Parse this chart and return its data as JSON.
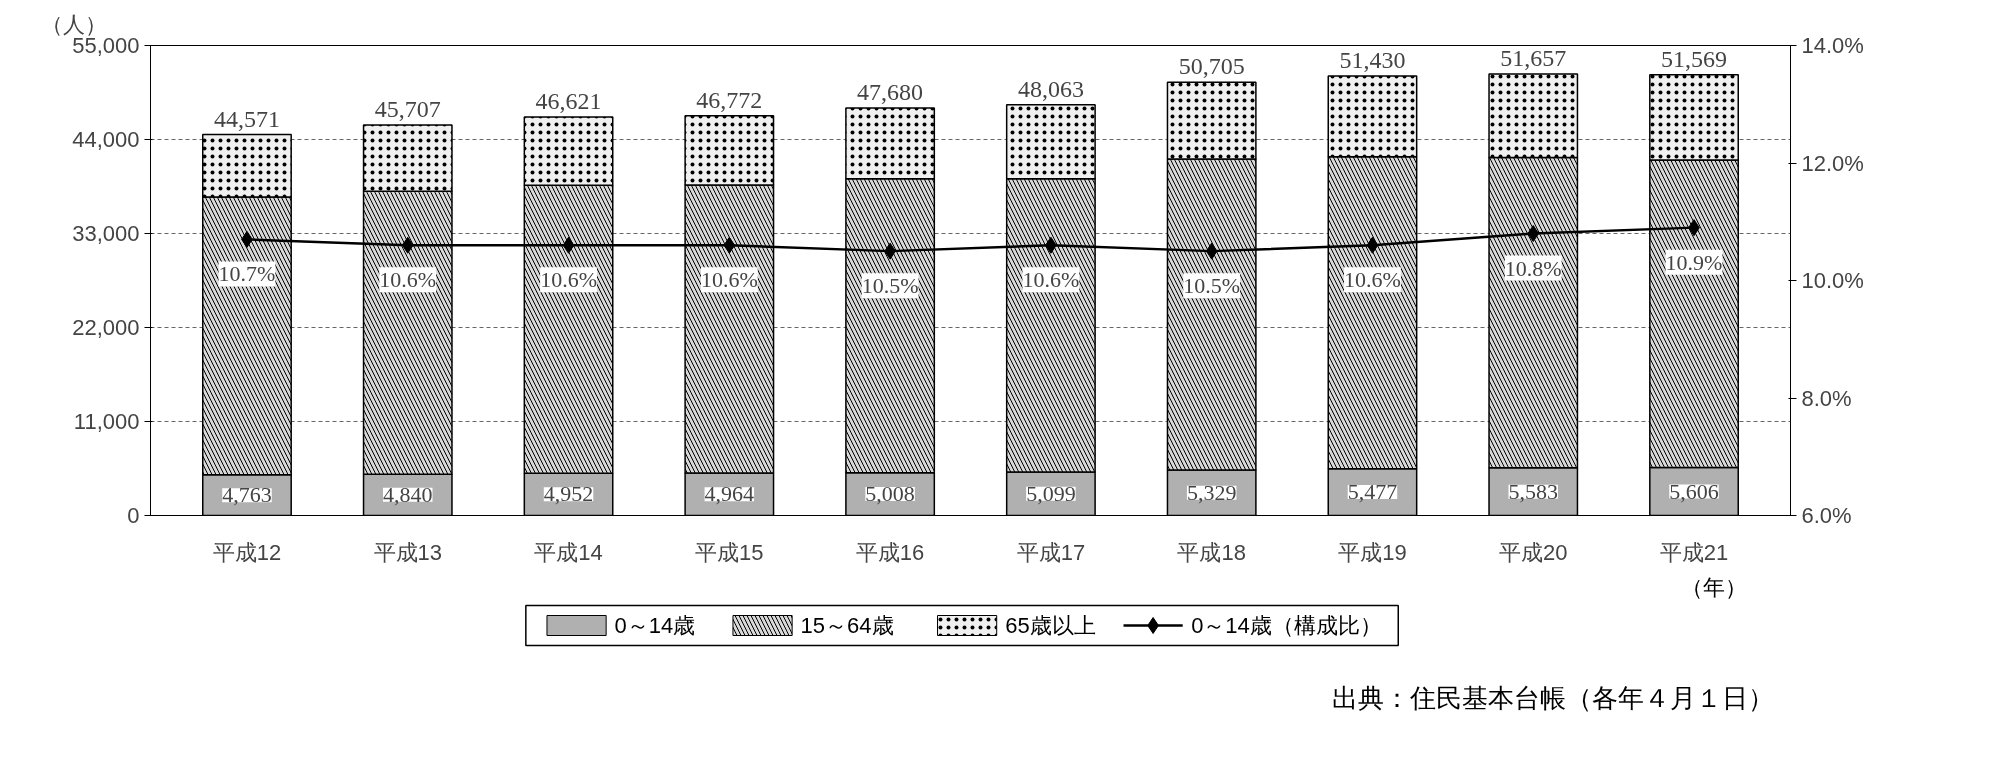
{
  "chart_data": {
    "type": "bar",
    "stacked": true,
    "categories": [
      "平成12",
      "平成13",
      "平成14",
      "平成15",
      "平成16",
      "平成17",
      "平成18",
      "平成19",
      "平成20",
      "平成21"
    ],
    "series": [
      {
        "name": "0～14歳",
        "color": "#b0b0b0",
        "values": [
          4763,
          4840,
          4952,
          4964,
          5008,
          5099,
          5329,
          5477,
          5583,
          5606
        ],
        "value_labels": [
          "4,763",
          "4,840",
          "4,952",
          "4,964",
          "5,008",
          "5,099",
          "5,329",
          "5,477",
          "5,583",
          "5,606"
        ]
      },
      {
        "name": "15～64歳",
        "color": "#d8d8d8",
        "values": [
          32500,
          33100,
          33700,
          33700,
          34400,
          34300,
          36400,
          36500,
          36300,
          36000
        ]
      },
      {
        "name": "65歳以上",
        "color": "#f0f0f0",
        "values": [
          7308,
          7767,
          7969,
          8108,
          8272,
          8664,
          8976,
          9453,
          9774,
          9963
        ]
      },
      {
        "name": "0～14歳（構成比）",
        "type": "line",
        "axis": "y2",
        "color": "#000000",
        "marker": "diamond",
        "values": [
          10.7,
          10.6,
          10.6,
          10.6,
          10.5,
          10.6,
          10.5,
          10.6,
          10.8,
          10.9
        ],
        "value_labels": [
          "10.7%",
          "10.6%",
          "10.6%",
          "10.6%",
          "10.5%",
          "10.6%",
          "10.5%",
          "10.6%",
          "10.8%",
          "10.9%"
        ]
      }
    ],
    "totals": [
      "44,571",
      "45,707",
      "46,621",
      "46,772",
      "47,680",
      "48,063",
      "50,705",
      "51,430",
      "51,657",
      "51,569"
    ],
    "ylim": [
      0,
      55000
    ],
    "yticks": [
      {
        "value": 0,
        "label": "0"
      },
      {
        "value": 11000,
        "label": "11,000"
      },
      {
        "value": 22000,
        "label": "22,000"
      },
      {
        "value": 33000,
        "label": "33,000"
      },
      {
        "value": 44000,
        "label": "44,000"
      },
      {
        "value": 55000,
        "label": "55,000"
      }
    ],
    "y2lim": [
      6,
      14
    ],
    "y2ticks": [
      {
        "value": 6,
        "label": "6.0%"
      },
      {
        "value": 8,
        "label": "8.0%"
      },
      {
        "value": 10,
        "label": "10.0%"
      },
      {
        "value": 12,
        "label": "12.0%"
      },
      {
        "value": 14,
        "label": "14.0%"
      }
    ],
    "ylabel": "（人）",
    "xlabel": "（年）",
    "annotations": [
      "出典：住民基本台帳（各年４月１日）"
    ],
    "grid": "y",
    "legend": "bottom"
  }
}
